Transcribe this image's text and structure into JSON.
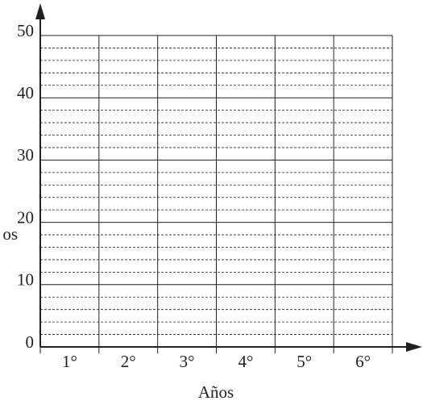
{
  "chart_data": {
    "type": "bar",
    "x_label": "Años",
    "y_label": "os",
    "categories": [
      "1°",
      "2°",
      "3°",
      "4°",
      "5°",
      "6°"
    ],
    "values": [
      null,
      null,
      null,
      null,
      null,
      null
    ],
    "color": "#000000",
    "ylim": [
      0,
      50
    ],
    "yticks": [
      0,
      10,
      20,
      30,
      40,
      50
    ],
    "minor_yticks": [
      2,
      4,
      6,
      8,
      12,
      14,
      16,
      18,
      22,
      24,
      26,
      28,
      32,
      34,
      36,
      38,
      42,
      44,
      46,
      48
    ],
    "grid": true
  }
}
